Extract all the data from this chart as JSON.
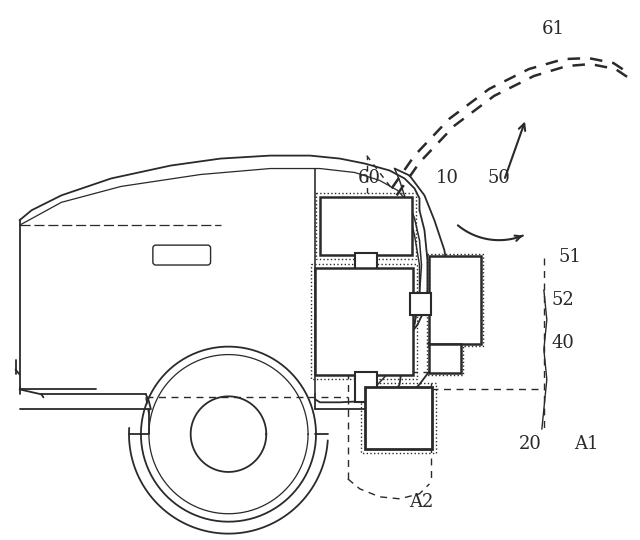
{
  "bg_color": "#ffffff",
  "line_color": "#2a2a2a",
  "fig_width": 6.4,
  "fig_height": 5.4,
  "dpi": 100
}
